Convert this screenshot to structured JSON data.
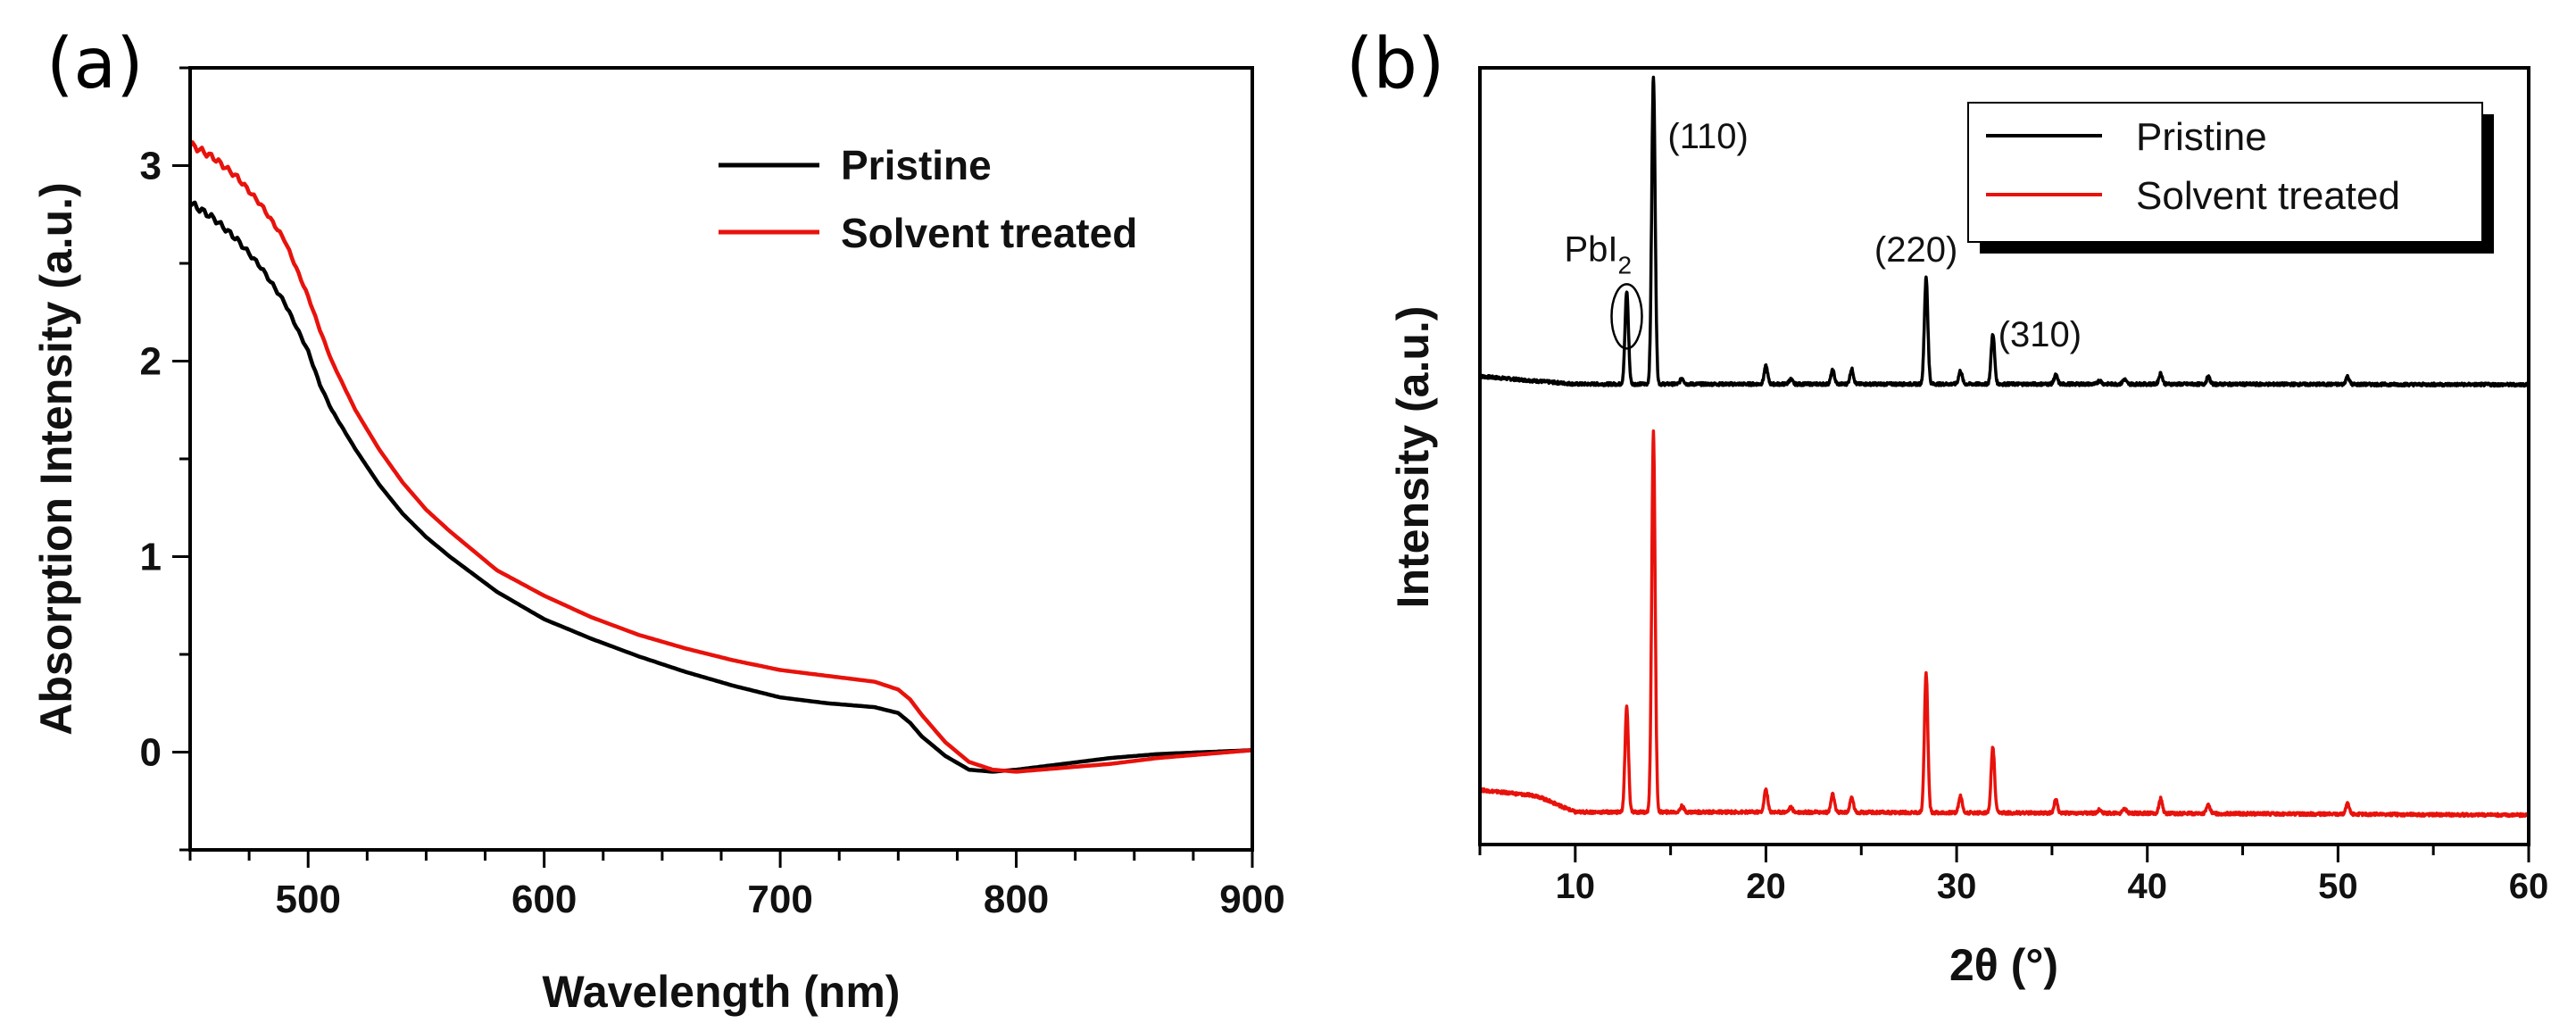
{
  "chart_data": [
    {
      "panel_label": "(a)",
      "type": "line",
      "xlabel": "Wavelength (nm)",
      "ylabel": "Absorption Intensity (a.u.)",
      "xlim": [
        450,
        900
      ],
      "ylim": [
        -0.5,
        3.5
      ],
      "xticks": [
        500,
        600,
        700,
        800,
        900
      ],
      "yticks": [
        0,
        1,
        2,
        3
      ],
      "legend_position": "top-right",
      "series": [
        {
          "name": "Pristine",
          "color": "#000000",
          "x": [
            450,
            460,
            470,
            480,
            490,
            500,
            505,
            510,
            520,
            530,
            540,
            550,
            560,
            580,
            600,
            620,
            640,
            660,
            680,
            700,
            720,
            740,
            750,
            755,
            760,
            770,
            780,
            790,
            800,
            820,
            840,
            860,
            880,
            900
          ],
          "y": [
            2.81,
            2.73,
            2.62,
            2.48,
            2.3,
            2.05,
            1.88,
            1.75,
            1.55,
            1.37,
            1.22,
            1.1,
            1.0,
            0.82,
            0.68,
            0.58,
            0.49,
            0.41,
            0.34,
            0.28,
            0.25,
            0.23,
            0.2,
            0.15,
            0.08,
            -0.02,
            -0.09,
            -0.1,
            -0.09,
            -0.06,
            -0.03,
            -0.01,
            0.0,
            0.01
          ]
        },
        {
          "name": "Solvent treated",
          "color": "#e8120c",
          "x": [
            450,
            460,
            470,
            480,
            490,
            500,
            505,
            510,
            520,
            530,
            540,
            550,
            560,
            580,
            600,
            620,
            640,
            660,
            680,
            700,
            720,
            740,
            750,
            755,
            760,
            770,
            780,
            790,
            800,
            820,
            840,
            860,
            880,
            900
          ],
          "y": [
            3.11,
            3.04,
            2.94,
            2.8,
            2.62,
            2.33,
            2.16,
            2.0,
            1.75,
            1.55,
            1.38,
            1.24,
            1.13,
            0.93,
            0.8,
            0.69,
            0.6,
            0.53,
            0.47,
            0.42,
            0.39,
            0.36,
            0.32,
            0.27,
            0.19,
            0.05,
            -0.05,
            -0.09,
            -0.1,
            -0.08,
            -0.06,
            -0.03,
            -0.01,
            0.01
          ]
        }
      ]
    },
    {
      "panel_label": "(b)",
      "type": "line",
      "xlabel": "2θ (°)",
      "ylabel": "Intensity (a.u.)",
      "xlim": [
        5,
        60
      ],
      "y_scale": "arbitrary units, curves vertically offset, no y tick labels",
      "xticks": [
        10,
        20,
        30,
        40,
        50,
        60
      ],
      "legend_position": "top-right",
      "series": [
        {
          "name": "Pristine",
          "color": "#000000",
          "baseline": [
            [
              5,
              0.5
            ],
            [
              8,
              0.42
            ],
            [
              10,
              0.37
            ],
            [
              20,
              0.37
            ],
            [
              40,
              0.37
            ],
            [
              60,
              0.36
            ]
          ],
          "peaks": [
            [
              12.7,
              1.55
            ],
            [
              14.1,
              5.15
            ],
            [
              15.6,
              0.1
            ],
            [
              20.0,
              0.3
            ],
            [
              21.3,
              0.08
            ],
            [
              23.5,
              0.23
            ],
            [
              24.5,
              0.25
            ],
            [
              28.4,
              1.78
            ],
            [
              30.2,
              0.22
            ],
            [
              31.9,
              0.84
            ],
            [
              35.2,
              0.15
            ],
            [
              37.5,
              0.06
            ],
            [
              38.8,
              0.08
            ],
            [
              40.7,
              0.18
            ],
            [
              43.2,
              0.12
            ],
            [
              50.5,
              0.13
            ]
          ]
        },
        {
          "name": "Solvent treated",
          "color": "#e8120c",
          "baseline": [
            [
              5,
              0.42
            ],
            [
              8,
              0.32
            ],
            [
              10,
              0.05
            ],
            [
              20,
              0.05
            ],
            [
              40,
              0.03
            ],
            [
              60,
              0.0
            ]
          ],
          "peaks": [
            [
              12.7,
              1.75
            ],
            [
              14.1,
              6.35
            ],
            [
              15.6,
              0.1
            ],
            [
              20.0,
              0.38
            ],
            [
              21.3,
              0.08
            ],
            [
              23.5,
              0.3
            ],
            [
              24.5,
              0.25
            ],
            [
              28.4,
              2.33
            ],
            [
              30.2,
              0.28
            ],
            [
              31.9,
              1.1
            ],
            [
              35.2,
              0.22
            ],
            [
              37.5,
              0.06
            ],
            [
              38.8,
              0.08
            ],
            [
              40.7,
              0.25
            ],
            [
              43.2,
              0.15
            ],
            [
              50.5,
              0.17
            ]
          ]
        }
      ],
      "annotations": [
        {
          "text": "(110)",
          "x": 14.1,
          "series": "Pristine"
        },
        {
          "text": "(220)",
          "x": 28.4,
          "series": "Pristine"
        },
        {
          "text": "(310)",
          "x": 31.9,
          "series": "Pristine"
        },
        {
          "text": "PbI",
          "subscript": "2",
          "x": 12.7,
          "series": "Pristine",
          "marker": "ellipse"
        }
      ]
    }
  ]
}
